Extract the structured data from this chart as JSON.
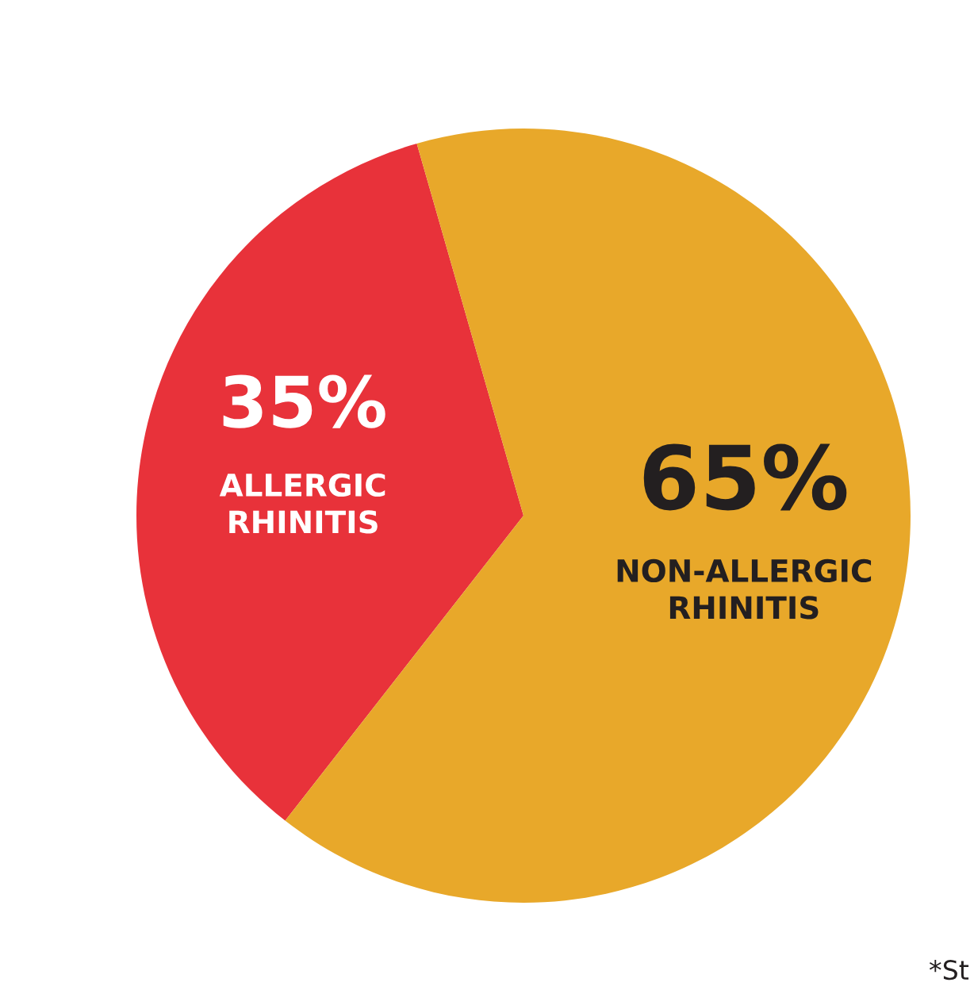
{
  "chart_data": {
    "type": "pie",
    "categories": [
      "ALLERGIC\nRHINITIS",
      "NON-ALLERGIC\nRHINITIS"
    ],
    "values": [
      35,
      65
    ],
    "colors": [
      "#e8323a",
      "#e8a82a"
    ],
    "value_labels": [
      "35%",
      "65%"
    ],
    "legend": false,
    "annotations": [
      "*St"
    ]
  }
}
